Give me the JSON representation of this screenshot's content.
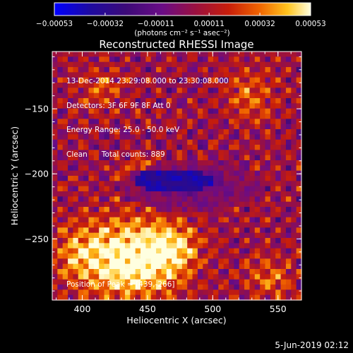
{
  "chart_data": {
    "type": "heatmap",
    "title": "Reconstructed RHESSI Image",
    "xlabel": "Heliocentric X (arcsec)",
    "ylabel": "Heliocentric Y (arcsec)",
    "xlim": [
      377,
      568
    ],
    "ylim": [
      -297,
      -106
    ],
    "x_ticks": [
      400,
      450,
      500,
      550
    ],
    "y_ticks": [
      -150,
      -200,
      -250
    ],
    "x_tick_labels": [
      "400",
      "450",
      "500",
      "550"
    ],
    "y_tick_labels": [
      "−150",
      "−200",
      "−250"
    ],
    "colorbar": {
      "min": -0.00053,
      "max": 0.00053,
      "ticks": [
        -0.00053,
        -0.00032,
        -0.00011,
        0.00011,
        0.00032,
        0.00053
      ],
      "tick_labels": [
        "−0.00053",
        "−0.00032",
        "−0.00011",
        "0.00011",
        "0.00032",
        "0.00053"
      ],
      "unit_label": "(photons cm⁻² s⁻¹ asec⁻²)",
      "colormap": [
        "#0000ff",
        "#1e0aa0",
        "#3c0a78",
        "#6a0c86",
        "#9a1040",
        "#c81e0a",
        "#f06400",
        "#ffc41e",
        "#ffffe0"
      ]
    },
    "peak": {
      "x": 439,
      "y": -266
    },
    "grid": false
  },
  "annotation": {
    "line1": "13-Dec-2014 23:29:08.000 to 23:30:08.000",
    "line2": "Detectors: 3F 6F 9F 8F Att 0",
    "line3": "Energy Range: 25.0 - 50.0 keV",
    "line4": "Clean      Total counts: 889",
    "peak_text": "Position of Peak = [439,-266]"
  },
  "footer": {
    "timestamp": "5-Jun-2019 02:12"
  }
}
